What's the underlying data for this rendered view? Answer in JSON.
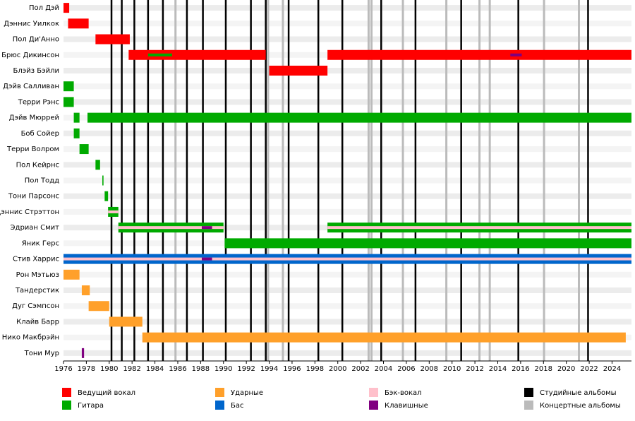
{
  "chart_data": {
    "type": "timeline",
    "categories": [
      "Пол Дэй",
      "Дэннис Уилкок",
      "Пол Ди'Анно",
      "Брюс Дикинсон",
      "Блэйз Бэйли",
      "Дэйв Салливан",
      "Терри Рэнс",
      "Дэйв Мюррей",
      "Боб Сойер",
      "Терри Волром",
      "Пол Кейрнс",
      "Пол Тодд",
      "Тони Парсонс",
      "Дэннис Стрэттон",
      "Эдриан Смит",
      "Яник Герс",
      "Стив Харрис",
      "Рон Мэтьюз",
      "Тандерстик",
      "Дуг Сэмпсон",
      "Клайв Барр",
      "Нико Макбрэйн",
      "Тони Мур"
    ],
    "xlim": [
      1976,
      2025.7
    ],
    "xticks": [
      1976,
      1978,
      1980,
      1982,
      1984,
      1986,
      1988,
      1990,
      1992,
      1994,
      1996,
      1998,
      2000,
      2002,
      2004,
      2006,
      2008,
      2010,
      2012,
      2014,
      2016,
      2018,
      2020,
      2022,
      2024
    ],
    "series": [
      {
        "name": "Ведущий вокал",
        "color": "#ff0000",
        "spans": [
          {
            "member": "Пол Дэй",
            "start": 1976,
            "end": 1976.5
          },
          {
            "member": "Дэннис Уилкок",
            "start": 1976.4,
            "end": 1978.2
          },
          {
            "member": "Пол Ди'Анно",
            "start": 1978.8,
            "end": 1981.8
          },
          {
            "member": "Брюс Дикинсон",
            "start": 1981.7,
            "end": 1993.7
          },
          {
            "member": "Брюс Дикинсон",
            "start": 1999.1,
            "end": 2025.7
          },
          {
            "member": "Блэйз Бэйли",
            "start": 1994.0,
            "end": 1999.1
          }
        ]
      },
      {
        "name": "Гитара",
        "color": "#00aa00",
        "spans": [
          {
            "member": "Дэйв Салливан",
            "start": 1976,
            "end": 1976.9
          },
          {
            "member": "Терри Рэнс",
            "start": 1976,
            "end": 1976.9
          },
          {
            "member": "Дэйв Мюррей",
            "start": 1976.9,
            "end": 1977.4
          },
          {
            "member": "Дэйв Мюррей",
            "start": 1978.1,
            "end": 2025.7
          },
          {
            "member": "Боб Сойер",
            "start": 1976.9,
            "end": 1977.4
          },
          {
            "member": "Терри Волром",
            "start": 1977.4,
            "end": 1978.2
          },
          {
            "member": "Пол Кейрнс",
            "start": 1978.8,
            "end": 1979.2
          },
          {
            "member": "Пол Тодд",
            "start": 1979.4,
            "end": 1979.5
          },
          {
            "member": "Тони Парсонс",
            "start": 1979.6,
            "end": 1979.9
          },
          {
            "member": "Дэннис Стрэттон",
            "start": 1979.9,
            "end": 1980.8
          },
          {
            "member": "Эдриан Смит",
            "start": 1980.8,
            "end": 1990.0
          },
          {
            "member": "Эдриан Смит",
            "start": 1999.1,
            "end": 2025.7
          },
          {
            "member": "Яник Герс",
            "start": 1990.1,
            "end": 2025.7
          },
          {
            "member": "Брюс Дикинсон",
            "start": 1983.4,
            "end": 1985.5
          }
        ]
      },
      {
        "name": "Ударные",
        "color": "#ffa02a",
        "spans": [
          {
            "member": "Рон Мэтьюз",
            "start": 1976,
            "end": 1977.4
          },
          {
            "member": "Тандерстик",
            "start": 1977.6,
            "end": 1978.3
          },
          {
            "member": "Дуг Сэмпсон",
            "start": 1978.2,
            "end": 1980.0
          },
          {
            "member": "Клайв Барр",
            "start": 1980.0,
            "end": 1982.9
          },
          {
            "member": "Нико Макбрэйн",
            "start": 1982.9,
            "end": 2025.2
          }
        ]
      },
      {
        "name": "Бас",
        "color": "#0066cc",
        "spans": [
          {
            "member": "Стив Харрис",
            "start": 1976,
            "end": 2025.7
          }
        ]
      },
      {
        "name": "Бэк-вокал",
        "color": "#ffc0cb",
        "spans": [
          {
            "member": "Дэннис Стрэттон",
            "start": 1979.9,
            "end": 1980.8
          },
          {
            "member": "Эдриан Смит",
            "start": 1980.8,
            "end": 1990.0
          },
          {
            "member": "Эдриан Смит",
            "start": 1999.1,
            "end": 2025.7
          },
          {
            "member": "Стив Харрис",
            "start": 1976,
            "end": 2025.7
          }
        ]
      },
      {
        "name": "Клавишные",
        "color": "#800080",
        "spans": [
          {
            "member": "Тони Мур",
            "start": 1977.6,
            "end": 1977.8
          },
          {
            "member": "Эдриан Смит",
            "start": 1988.1,
            "end": 1989.0
          },
          {
            "member": "Стив Харрис",
            "start": 1988.1,
            "end": 1989.0
          },
          {
            "member": "Брюс Дикинсон",
            "start": 2015.1,
            "end": 2016.1
          }
        ]
      }
    ],
    "album_types": [
      {
        "name": "Студийные альбомы",
        "color": "#000000",
        "years": [
          1980.2,
          1981.1,
          1982.2,
          1983.4,
          1984.7,
          1986.8,
          1988.2,
          1990.2,
          1992.4,
          1993.7,
          1995.7,
          1998.3,
          2000.4,
          2003.8,
          2006.8,
          2010.8,
          2015.8,
          2021.9
        ]
      },
      {
        "name": "Концертные альбомы",
        "color": "#bbbbbb",
        "years": [
          1985.8,
          1993.9,
          1995.2,
          2002.7,
          2002.95,
          2005.7,
          2009.5,
          2012.4,
          2013.3,
          2018.05,
          2021.1
        ]
      }
    ]
  }
}
